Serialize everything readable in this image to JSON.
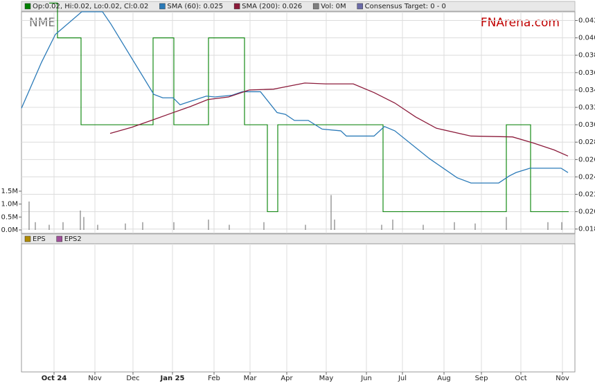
{
  "chart_data": [
    {
      "type": "stock",
      "ticker": "NME",
      "watermark": "FNArena.com",
      "consensus_label": "Consensus Target: 0 - 0",
      "consensus_color": "#6a6aa8",
      "xlim": [
        0,
        799
      ],
      "xticks": [
        {
          "value": 47,
          "label": "Oct 24"
        },
        {
          "value": 106,
          "label": "Nov"
        },
        {
          "value": 161,
          "label": "Dec"
        },
        {
          "value": 218,
          "label": "Jan 25"
        },
        {
          "value": 278,
          "label": "Feb"
        },
        {
          "value": 330,
          "label": "Mar"
        },
        {
          "value": 383,
          "label": "Apr"
        },
        {
          "value": 440,
          "label": "May"
        },
        {
          "value": 498,
          "label": "Jun"
        },
        {
          "value": 550,
          "label": "Jul"
        },
        {
          "value": 610,
          "label": "Aug"
        },
        {
          "value": 664,
          "label": "Sep"
        },
        {
          "value": 721,
          "label": "Oct"
        },
        {
          "value": 781,
          "label": "Nov"
        }
      ],
      "ylim": [
        0.0175,
        0.043
      ],
      "yticks": [
        0.018,
        {
          "value": 0.02,
          "label": "0.020"
        },
        0.022,
        0.024,
        0.026,
        0.028,
        {
          "value": 0.03,
          "label": "0.030"
        },
        0.032,
        0.034,
        0.036,
        0.038,
        {
          "value": 0.04,
          "label": "0.040"
        },
        0.042
      ],
      "y2lim": [
        0,
        1.5
      ],
      "y2ticks": [
        {
          "value": 0,
          "label": "0.0M"
        },
        {
          "value": 0.5,
          "label": "0.5M"
        },
        {
          "value": 1.0,
          "label": "1.0M"
        },
        {
          "value": 1.5,
          "label": "1.5M"
        }
      ],
      "grid": true,
      "series": [
        {
          "name": "Op:0.02, Hi:0.02, Lo:0.02, Cl:0.02",
          "color": "#008000",
          "style": "step",
          "x": [
            40,
            52,
            86,
            190,
            220,
            270,
            300,
            322,
            355,
            370,
            522,
            536,
            700,
            735,
            790
          ],
          "values": [
            0.044,
            0.04,
            0.03,
            0.04,
            0.03,
            0.04,
            0.04,
            0.03,
            0.02,
            0.03,
            0.02,
            0.02,
            0.03,
            0.02,
            0.02
          ]
        },
        {
          "name": "SMA (60): 0.025",
          "color": "#2a7ab8",
          "style": "line",
          "x": [
            0,
            29,
            49,
            87,
            117,
            129,
            191,
            204,
            219,
            229,
            244,
            267,
            279,
            304,
            319,
            345,
            369,
            381,
            394,
            414,
            434,
            461,
            469,
            509,
            524,
            539,
            589,
            629,
            649,
            689,
            704,
            714,
            734,
            779,
            789
          ],
          "values": [
            0.0319,
            0.0372,
            0.0404,
            0.043,
            0.043,
            0.0416,
            0.0335,
            0.0331,
            0.0331,
            0.0323,
            0.0327,
            0.0333,
            0.0332,
            0.0334,
            0.0338,
            0.0338,
            0.0314,
            0.0312,
            0.0305,
            0.0305,
            0.0295,
            0.0293,
            0.0287,
            0.0287,
            0.0298,
            0.0293,
            0.0261,
            0.0239,
            0.0233,
            0.0233,
            0.0241,
            0.0245,
            0.025,
            0.025,
            0.0245
          ]
        },
        {
          "name": "SMA (200): 0.026",
          "color": "#8b1a3a",
          "style": "line",
          "x": [
            128,
            159,
            191,
            219,
            244,
            269,
            299,
            329,
            364,
            409,
            439,
            479,
            509,
            539,
            569,
            599,
            649,
            709,
            739,
            769,
            789
          ],
          "values": [
            0.029,
            0.0297,
            0.0306,
            0.0314,
            0.0321,
            0.0329,
            0.0332,
            0.034,
            0.0341,
            0.0348,
            0.0347,
            0.0347,
            0.0337,
            0.0325,
            0.0309,
            0.0296,
            0.0287,
            0.0286,
            0.0279,
            0.0271,
            0.0264
          ]
        },
        {
          "name": "Vol: 0M",
          "color": "#808080",
          "style": "bar",
          "axis": "y2",
          "x": [
            11,
            20,
            40,
            60,
            85,
            90,
            110,
            150,
            175,
            220,
            270,
            300,
            350,
            410,
            447,
            452,
            520,
            536,
            580,
            625,
            655,
            700,
            760,
            780
          ],
          "values": [
            1.1,
            0.3,
            0.2,
            0.3,
            0.75,
            0.5,
            0.2,
            0.25,
            0.3,
            0.3,
            0.4,
            0.2,
            0.3,
            0.2,
            1.35,
            0.4,
            0.2,
            0.4,
            0.2,
            0.3,
            0.25,
            0.5,
            0.3,
            0.3
          ]
        }
      ]
    },
    {
      "type": "line",
      "series": [
        {
          "name": "EPS",
          "color": "#b08a00",
          "values": []
        },
        {
          "name": "EPS2",
          "color": "#a0509a",
          "values": []
        }
      ]
    }
  ]
}
